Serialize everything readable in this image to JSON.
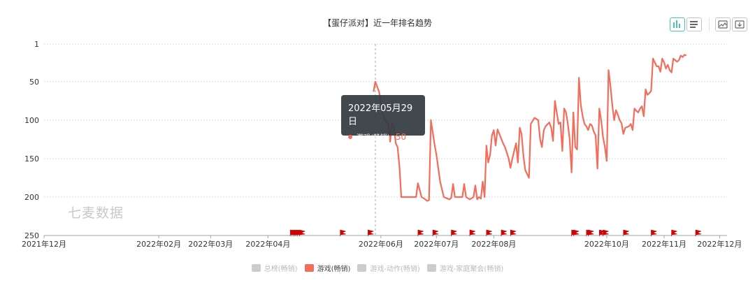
{
  "title": "【蛋仔派对】近一年排名趋势",
  "toolbar": {
    "icons": [
      "bar-chart-icon",
      "list-icon",
      "image-export-icon",
      "download-icon"
    ],
    "accent": "#49c5b6"
  },
  "watermark": "七麦数据",
  "tooltip": {
    "date": "2022年05月29日",
    "series": "游戏(畅销)",
    "value": "50"
  },
  "legend": [
    {
      "name": "总榜(畅销)",
      "color": "#cccccc",
      "active": false
    },
    {
      "name": "游戏(畅销)",
      "color": "#f26d5b",
      "active": true
    },
    {
      "name": "游戏-动作(畅销)",
      "color": "#cccccc",
      "active": false
    },
    {
      "name": "游戏-家庭聚会(畅销)",
      "color": "#cccccc",
      "active": false
    }
  ],
  "chart_data": {
    "type": "line",
    "title": "【蛋仔派对】近一年排名趋势",
    "x_tick_labels": [
      "2021年12月",
      "2022年02月",
      "2022年03月",
      "2022年04月",
      "2022年06月",
      "2022年07月",
      "2022年08月",
      "2022年10月",
      "2022年11月",
      "2022年12月"
    ],
    "x_tick_dates": [
      "2021-12-01",
      "2022-02-01",
      "2022-03-01",
      "2022-04-01",
      "2022-06-01",
      "2022-07-01",
      "2022-08-01",
      "2022-10-01",
      "2022-11-01",
      "2022-12-01"
    ],
    "x_range": [
      "2021-12-01",
      "2022-12-05"
    ],
    "y_inverted": true,
    "ylim": [
      1,
      250
    ],
    "y_ticks": [
      1,
      50,
      100,
      150,
      200,
      250
    ],
    "grid": true,
    "line_color": "#f26d5b",
    "series": [
      {
        "name": "游戏(畅销)",
        "points": [
          [
            "2022-05-28",
            63
          ],
          [
            "2022-05-29",
            50
          ],
          [
            "2022-05-31",
            63
          ],
          [
            "2022-06-02",
            90
          ],
          [
            "2022-06-03",
            100
          ],
          [
            "2022-06-05",
            105
          ],
          [
            "2022-06-06",
            128
          ],
          [
            "2022-06-07",
            104
          ],
          [
            "2022-06-08",
            108
          ],
          [
            "2022-06-09",
            130
          ],
          [
            "2022-06-10",
            135
          ],
          [
            "2022-06-11",
            160
          ],
          [
            "2022-06-12",
            200
          ],
          [
            "2022-06-15",
            200
          ],
          [
            "2022-06-18",
            200
          ],
          [
            "2022-06-20",
            200
          ],
          [
            "2022-06-21",
            182
          ],
          [
            "2022-06-23",
            200
          ],
          [
            "2022-06-25",
            203
          ],
          [
            "2022-06-26",
            205
          ],
          [
            "2022-06-27",
            204
          ],
          [
            "2022-06-28",
            100
          ],
          [
            "2022-06-30",
            132
          ],
          [
            "2022-07-01",
            145
          ],
          [
            "2022-07-03",
            180
          ],
          [
            "2022-07-05",
            200
          ],
          [
            "2022-07-08",
            203
          ],
          [
            "2022-07-09",
            201
          ],
          [
            "2022-07-10",
            183
          ],
          [
            "2022-07-11",
            200
          ],
          [
            "2022-07-13",
            200
          ],
          [
            "2022-07-15",
            200
          ],
          [
            "2022-07-16",
            183
          ],
          [
            "2022-07-17",
            200
          ],
          [
            "2022-07-19",
            203
          ],
          [
            "2022-07-21",
            200
          ],
          [
            "2022-07-22",
            185
          ],
          [
            "2022-07-23",
            203
          ],
          [
            "2022-07-24",
            200
          ],
          [
            "2022-07-25",
            202
          ],
          [
            "2022-07-26",
            180
          ],
          [
            "2022-07-27",
            200
          ],
          [
            "2022-07-28",
            133
          ],
          [
            "2022-07-29",
            155
          ],
          [
            "2022-07-30",
            145
          ],
          [
            "2022-07-31",
            120
          ],
          [
            "2022-08-01",
            113
          ],
          [
            "2022-08-02",
            133
          ],
          [
            "2022-08-03",
            112
          ],
          [
            "2022-08-04",
            118
          ],
          [
            "2022-08-06",
            130
          ],
          [
            "2022-08-07",
            135
          ],
          [
            "2022-08-08",
            142
          ],
          [
            "2022-08-09",
            150
          ],
          [
            "2022-08-10",
            162
          ],
          [
            "2022-08-11",
            150
          ],
          [
            "2022-08-13",
            130
          ],
          [
            "2022-08-14",
            155
          ],
          [
            "2022-08-15",
            110
          ],
          [
            "2022-08-16",
            118
          ],
          [
            "2022-08-17",
            147
          ],
          [
            "2022-08-18",
            165
          ],
          [
            "2022-08-19",
            170
          ],
          [
            "2022-08-20",
            175
          ],
          [
            "2022-08-21",
            105
          ],
          [
            "2022-08-23",
            97
          ],
          [
            "2022-08-25",
            100
          ],
          [
            "2022-08-26",
            125
          ],
          [
            "2022-08-27",
            135
          ],
          [
            "2022-08-28",
            113
          ],
          [
            "2022-08-29",
            108
          ],
          [
            "2022-08-31",
            103
          ],
          [
            "2022-09-01",
            110
          ],
          [
            "2022-09-02",
            127
          ],
          [
            "2022-09-03",
            75
          ],
          [
            "2022-09-04",
            90
          ],
          [
            "2022-09-05",
            105
          ],
          [
            "2022-09-06",
            103
          ],
          [
            "2022-09-07",
            140
          ],
          [
            "2022-09-08",
            85
          ],
          [
            "2022-09-09",
            90
          ],
          [
            "2022-09-10",
            105
          ],
          [
            "2022-09-11",
            125
          ],
          [
            "2022-09-12",
            168
          ],
          [
            "2022-09-13",
            90
          ],
          [
            "2022-09-14",
            135
          ],
          [
            "2022-09-15",
            138
          ],
          [
            "2022-09-16",
            45
          ],
          [
            "2022-09-17",
            80
          ],
          [
            "2022-09-18",
            95
          ],
          [
            "2022-09-19",
            105
          ],
          [
            "2022-09-20",
            108
          ],
          [
            "2022-09-21",
            113
          ],
          [
            "2022-09-22",
            105
          ],
          [
            "2022-09-23",
            107
          ],
          [
            "2022-09-24",
            115
          ],
          [
            "2022-09-25",
            120
          ],
          [
            "2022-09-26",
            163
          ],
          [
            "2022-09-27",
            85
          ],
          [
            "2022-09-28",
            100
          ],
          [
            "2022-09-29",
            122
          ],
          [
            "2022-09-30",
            135
          ],
          [
            "2022-10-01",
            153
          ],
          [
            "2022-10-02",
            35
          ],
          [
            "2022-10-03",
            55
          ],
          [
            "2022-10-04",
            80
          ],
          [
            "2022-10-05",
            100
          ],
          [
            "2022-10-06",
            87
          ],
          [
            "2022-10-07",
            93
          ],
          [
            "2022-10-08",
            100
          ],
          [
            "2022-10-09",
            104
          ],
          [
            "2022-10-10",
            118
          ],
          [
            "2022-10-11",
            110
          ],
          [
            "2022-10-13",
            108
          ],
          [
            "2022-10-14",
            105
          ],
          [
            "2022-10-15",
            113
          ],
          [
            "2022-10-16",
            85
          ],
          [
            "2022-10-17",
            88
          ],
          [
            "2022-10-18",
            90
          ],
          [
            "2022-10-19",
            85
          ],
          [
            "2022-10-20",
            82
          ],
          [
            "2022-10-21",
            95
          ],
          [
            "2022-10-22",
            60
          ],
          [
            "2022-10-23",
            67
          ],
          [
            "2022-10-24",
            65
          ],
          [
            "2022-10-25",
            62
          ],
          [
            "2022-10-26",
            20
          ],
          [
            "2022-10-27",
            25
          ],
          [
            "2022-10-28",
            30
          ],
          [
            "2022-10-29",
            30
          ],
          [
            "2022-10-30",
            37
          ],
          [
            "2022-10-31",
            20
          ],
          [
            "2022-11-01",
            25
          ],
          [
            "2022-11-02",
            33
          ],
          [
            "2022-11-03",
            28
          ],
          [
            "2022-11-04",
            35
          ],
          [
            "2022-11-05",
            38
          ],
          [
            "2022-11-06",
            20
          ],
          [
            "2022-11-07",
            22
          ],
          [
            "2022-11-08",
            24
          ],
          [
            "2022-11-09",
            22
          ],
          [
            "2022-11-10",
            16
          ],
          [
            "2022-11-11",
            18
          ],
          [
            "2022-11-12",
            15
          ],
          [
            "2022-11-13",
            16
          ]
        ]
      }
    ],
    "event_markers": [
      "2022-04-13",
      "2022-04-14",
      "2022-04-15",
      "2022-04-16",
      "2022-04-17",
      "2022-04-18",
      "2022-05-10",
      "2022-05-25",
      "2022-06-21",
      "2022-06-29",
      "2022-07-09",
      "2022-07-19",
      "2022-07-28",
      "2022-08-05",
      "2022-08-10",
      "2022-09-12",
      "2022-09-13",
      "2022-09-20",
      "2022-09-21",
      "2022-09-27",
      "2022-09-29",
      "2022-10-10",
      "2022-10-25",
      "2022-11-05",
      "2022-11-18"
    ]
  }
}
